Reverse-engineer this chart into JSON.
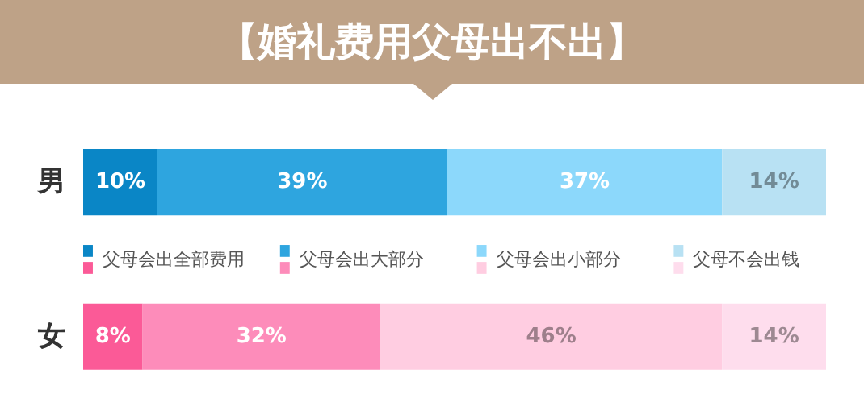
{
  "chart_data": {
    "type": "bar",
    "orientation": "horizontal",
    "stacked": true,
    "title": "【婚礼费用父母出不出】",
    "categories": [
      "男",
      "女"
    ],
    "tick_labels": "y",
    "legend": "center",
    "series": [
      {
        "name": "父母会出全部费用",
        "colors": [
          "#0a86c6",
          "#fb5a97"
        ],
        "values": [
          10,
          8
        ],
        "value_labels": [
          "10%",
          "8%"
        ]
      },
      {
        "name": "父母会出大部分",
        "colors": [
          "#2ea5df",
          "#fd8cba"
        ],
        "values": [
          39,
          32
        ],
        "value_labels": [
          "39%",
          "32%"
        ]
      },
      {
        "name": "父母会出小部分",
        "colors": [
          "#8cd8fb",
          "#ffcde1"
        ],
        "values": [
          37,
          46
        ],
        "value_labels": [
          "37%",
          "46%"
        ]
      },
      {
        "name": "父母不会出钱",
        "colors": [
          "#b8e1f3",
          "#fedded"
        ],
        "values": [
          14,
          14
        ],
        "value_labels": [
          "14%",
          "14%"
        ]
      }
    ]
  }
}
